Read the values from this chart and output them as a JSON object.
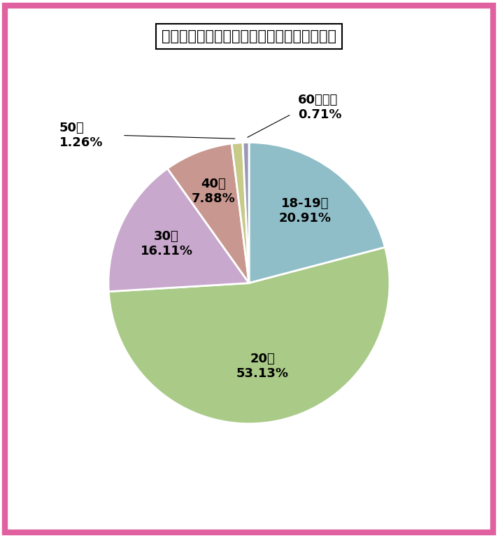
{
  "title": "佐賀県のワクワクメール：女性会員の年齢層",
  "values": [
    20.91,
    53.13,
    16.11,
    7.88,
    1.26,
    0.71
  ],
  "labels": [
    "18-19歳",
    "20代",
    "30代",
    "40代",
    "50代",
    "60代以上"
  ],
  "pct_labels": [
    "20.91%",
    "53.13%",
    "16.11%",
    "7.88%",
    "1.26%",
    "0.71%"
  ],
  "colors": [
    "#90BEC8",
    "#AACA88",
    "#C8A8CC",
    "#C89890",
    "#C8CA88",
    "#9898B8"
  ],
  "background_color": "#FFFFFF",
  "outer_border_color": "#E060A0",
  "startangle": 90,
  "title_fontsize": 15,
  "label_fontsize": 13
}
